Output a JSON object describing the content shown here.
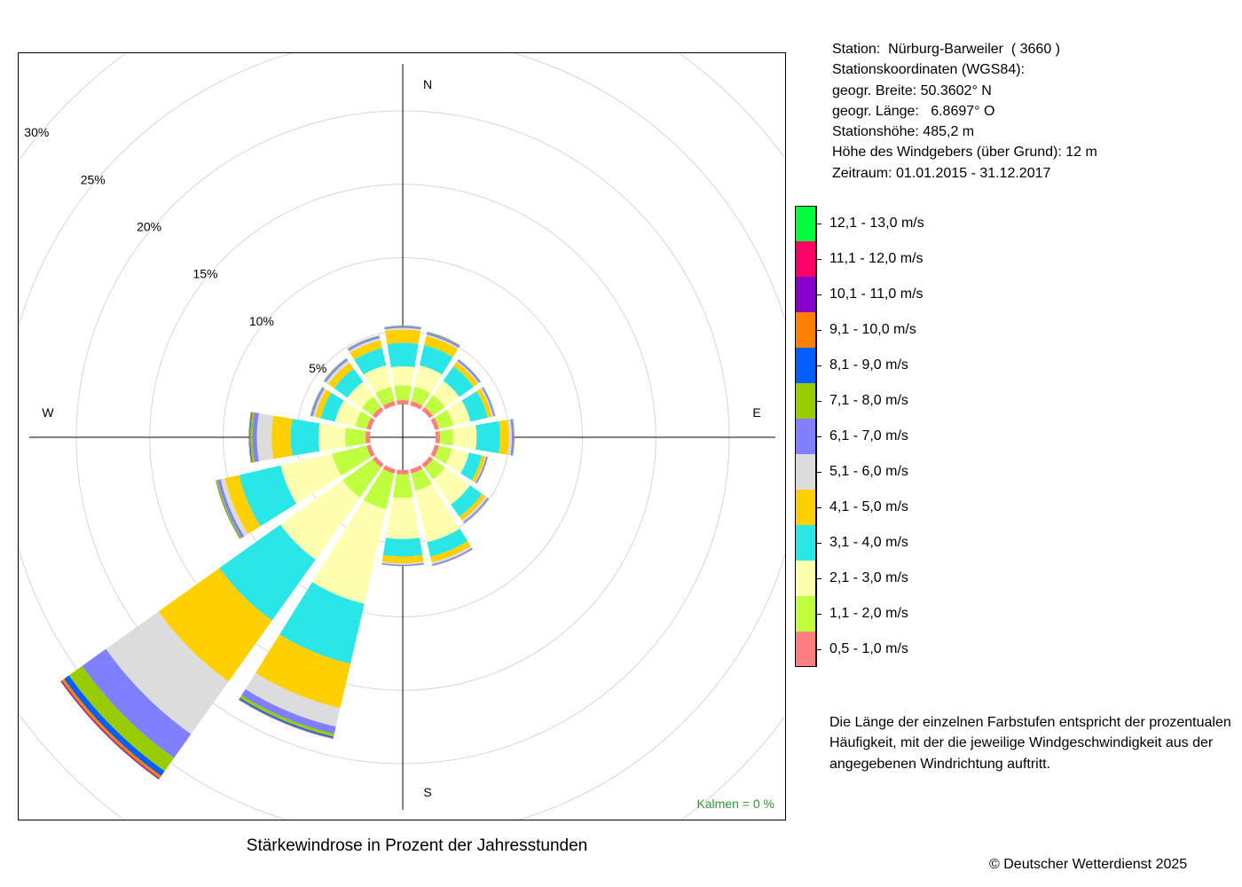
{
  "chart_data": {
    "type": "wind-rose",
    "title": "Stärkewindrose in Prozent der Jahresstunden",
    "radial_unit": "%",
    "radial_ticks": [
      5,
      10,
      15,
      20,
      25,
      30
    ],
    "radial_tick_labels": [
      "5%",
      "10%",
      "15%",
      "20%",
      "25%",
      "30%"
    ],
    "directions": [
      "N",
      "NNE",
      "NE",
      "ENE",
      "E",
      "ESE",
      "SE",
      "SSE",
      "S",
      "SSW",
      "SW",
      "WSW",
      "W",
      "WNW",
      "NW",
      "NNW"
    ],
    "direction_angles_deg": [
      0,
      22.5,
      45,
      67.5,
      90,
      112.5,
      135,
      157.5,
      180,
      202.5,
      225,
      247.5,
      270,
      292.5,
      315,
      337.5
    ],
    "compass_labels": {
      "north": "N",
      "east": "E",
      "south": "S",
      "west": "W"
    },
    "speed_classes": [
      {
        "label": "0,5 - 1,0 m/s",
        "color": "#ff7f7f"
      },
      {
        "label": "1,1 - 2,0 m/s",
        "color": "#bfff3f"
      },
      {
        "label": "2,1 - 3,0 m/s",
        "color": "#ffffaf"
      },
      {
        "label": "3,1 - 4,0 m/s",
        "color": "#2ae6e6"
      },
      {
        "label": "4,1 - 5,0 m/s",
        "color": "#ffd000"
      },
      {
        "label": "5,1 - 6,0 m/s",
        "color": "#dcdcdc"
      },
      {
        "label": "6,1 - 7,0 m/s",
        "color": "#7f7fff"
      },
      {
        "label": "7,1 - 8,0 m/s",
        "color": "#99cc00"
      },
      {
        "label": "8,1 - 9,0 m/s",
        "color": "#005fff"
      },
      {
        "label": "9,1 - 10,0 m/s",
        "color": "#ff8000"
      },
      {
        "label": "10,1 - 11,0 m/s",
        "color": "#8800cc"
      },
      {
        "label": "11,1 - 12,0 m/s",
        "color": "#ff0066"
      },
      {
        "label": "12,1 - 13,0 m/s",
        "color": "#00ff3f"
      }
    ],
    "series": [
      {
        "direction": "N",
        "values": [
          0.3,
          1.0,
          1.3,
          1.6,
          0.9,
          0.12,
          0.1,
          0.04,
          0.02,
          0,
          0,
          0,
          0
        ]
      },
      {
        "direction": "NNE",
        "values": [
          0.3,
          1.0,
          1.5,
          1.4,
          0.65,
          0.1,
          0.12,
          0.05,
          0.02,
          0,
          0,
          0,
          0
        ]
      },
      {
        "direction": "NE",
        "values": [
          0.3,
          1.0,
          1.2,
          1.2,
          0.35,
          0.1,
          0.1,
          0.03,
          0.02,
          0,
          0,
          0,
          0
        ]
      },
      {
        "direction": "ENE",
        "values": [
          0.3,
          1.0,
          1.2,
          1.2,
          0.3,
          0.1,
          0.08,
          0.03,
          0.02,
          0,
          0,
          0,
          0
        ]
      },
      {
        "direction": "E",
        "values": [
          0.3,
          0.9,
          1.6,
          1.6,
          0.6,
          0.2,
          0.12,
          0.03,
          0.02,
          0,
          0,
          0,
          0
        ]
      },
      {
        "direction": "ESE",
        "values": [
          0.3,
          0.9,
          1.2,
          0.9,
          0.25,
          0.05,
          0.1,
          0.02,
          0,
          0,
          0,
          0,
          0
        ]
      },
      {
        "direction": "SE",
        "values": [
          0.3,
          1.0,
          2.1,
          1.0,
          0.3,
          0.15,
          0.1,
          0.02,
          0,
          0,
          0,
          0,
          0
        ]
      },
      {
        "direction": "SSE",
        "values": [
          0.3,
          1.2,
          3.6,
          1.0,
          0.4,
          0.15,
          0.1,
          0.02,
          0,
          0,
          0,
          0,
          0
        ]
      },
      {
        "direction": "S",
        "values": [
          0.3,
          1.6,
          2.8,
          1.2,
          0.45,
          0.1,
          0.08,
          0.02,
          0,
          0,
          0,
          0,
          0
        ]
      },
      {
        "direction": "SSW",
        "values": [
          0.3,
          2.5,
          6.6,
          4.2,
          3.1,
          1.3,
          0.5,
          0.2,
          0.1,
          0.03,
          0.02,
          0,
          0
        ]
      },
      {
        "direction": "SW",
        "values": [
          0.3,
          2.5,
          5.2,
          5.1,
          5.1,
          4.4,
          2.0,
          1.1,
          0.4,
          0.2,
          0.06,
          0.03,
          0.02
        ]
      },
      {
        "direction": "WSW",
        "values": [
          0.3,
          2.4,
          3.6,
          2.9,
          1.0,
          0.3,
          0.2,
          0.1,
          0.03,
          0.02,
          0,
          0,
          0
        ]
      },
      {
        "direction": "W",
        "values": [
          0.3,
          1.4,
          1.8,
          1.9,
          1.3,
          1.0,
          0.3,
          0.15,
          0.05,
          0.03,
          0.02,
          0,
          0
        ]
      },
      {
        "direction": "WNW",
        "values": [
          0.3,
          0.8,
          1.4,
          1.0,
          0.4,
          0.15,
          0.12,
          0.04,
          0.02,
          0,
          0,
          0,
          0
        ]
      },
      {
        "direction": "NW",
        "values": [
          0.3,
          0.9,
          1.2,
          1.1,
          0.5,
          0.2,
          0.12,
          0.04,
          0.02,
          0,
          0,
          0,
          0
        ]
      },
      {
        "direction": "NNW",
        "values": [
          0.3,
          1.0,
          1.5,
          1.2,
          0.55,
          0.15,
          0.12,
          0.04,
          0.02,
          0,
          0,
          0,
          0
        ]
      }
    ],
    "calm_label": "Kalmen  =  0 %",
    "grid": true
  },
  "station_info": [
    "Station:  Nürburg-Barweiler  ( 3660 )",
    "Stationskoordinaten (WGS84):",
    "geogr. Breite: 50.3602° N",
    "geogr. Länge:   6.8697° O",
    "Stationshöhe: 485,2 m",
    "Höhe des Windgebers (über Grund): 12 m",
    "Zeitraum: 01.01.2015 - 31.12.2017"
  ],
  "legend_note": "Die Länge der einzelnen Farbstufen entspricht der prozentualen Häufigkeit, mit der die jeweilige Windgeschwindigkeit aus der angegebenen Windrichtung auftritt.",
  "copyright": "© Deutscher Wetterdienst  2025"
}
